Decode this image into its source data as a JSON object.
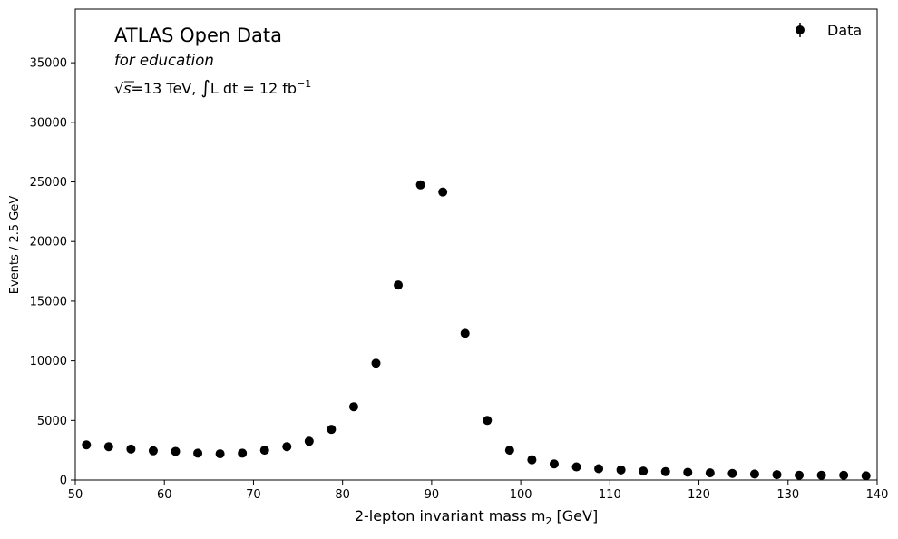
{
  "chart_data": {
    "type": "scatter",
    "title": "ATLAS Open Data",
    "subtitle": "for education",
    "energy_label": {
      "sqrt": "√",
      "s_symbol": "s",
      "energy_text": "=13 TeV,",
      "integral_symbol": "∫",
      "lumi_text": "L dt = 12 fb",
      "lumi_exponent": "−1"
    },
    "xlabel": {
      "text": "2-lepton invariant mass m",
      "subscript": "2",
      "unit": "[GeV]"
    },
    "ylabel": "Events / 2.5 GeV",
    "xlim": [
      50,
      140
    ],
    "ylim": [
      0,
      39500
    ],
    "xticks": [
      "50",
      "60",
      "70",
      "80",
      "90",
      "100",
      "110",
      "120",
      "130",
      "140"
    ],
    "yticks": [
      "0",
      "5000",
      "10000",
      "15000",
      "20000",
      "25000",
      "30000",
      "35000"
    ],
    "grid": false,
    "legend": {
      "position": "top-right",
      "entries": [
        "Data"
      ]
    },
    "series": [
      {
        "name": "Data",
        "color": "#000000",
        "marker": "circle",
        "x": [
          51.25,
          53.75,
          56.25,
          58.75,
          61.25,
          63.75,
          66.25,
          68.75,
          71.25,
          73.75,
          76.25,
          78.75,
          81.25,
          83.75,
          86.25,
          88.75,
          91.25,
          93.75,
          96.25,
          98.75,
          101.25,
          103.75,
          106.25,
          108.75,
          111.25,
          113.75,
          116.25,
          118.75,
          121.25,
          123.75,
          126.25,
          128.75,
          131.25,
          133.75,
          136.25,
          138.75
        ],
        "y": [
          2950,
          2800,
          2600,
          2450,
          2400,
          2250,
          2200,
          2250,
          2500,
          2800,
          3250,
          4250,
          6150,
          9800,
          16350,
          24750,
          24150,
          12300,
          5000,
          2500,
          1700,
          1350,
          1100,
          950,
          850,
          750,
          700,
          650,
          600,
          550,
          500,
          450,
          400,
          400,
          400,
          350
        ]
      }
    ]
  }
}
